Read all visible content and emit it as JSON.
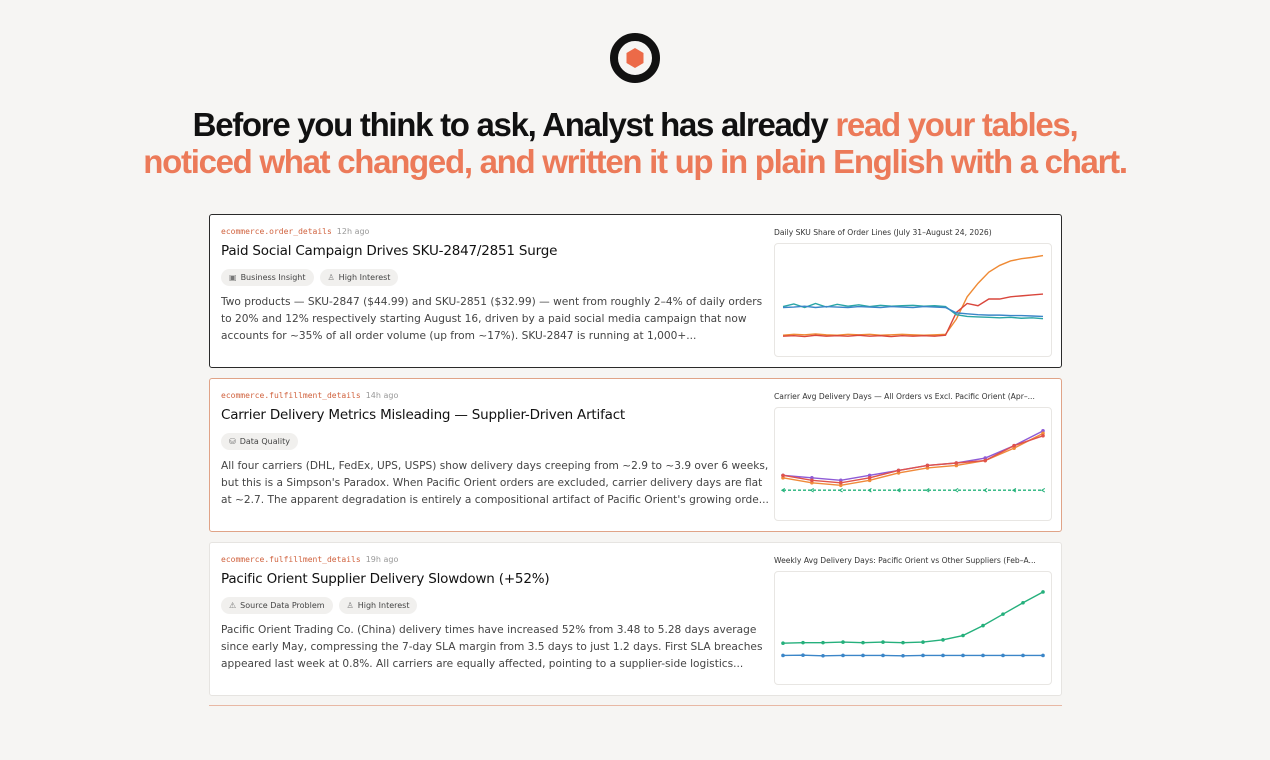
{
  "headline": {
    "lead": "Before you think to ask, Analyst has already",
    "highlight": "read your tables, noticed what changed, and written it up in plain English with a chart."
  },
  "cards": [
    {
      "source": "ecommerce.order_details",
      "age": "12h ago",
      "title": "Paid Social Campaign Drives SKU-2847/2851 Surge",
      "tags": [
        "Business Insight",
        "High Interest"
      ],
      "body": "Two products — SKU-2847 ($44.99) and SKU-2851 ($32.99) — went from roughly 2–4% of daily orders to 20% and 12% respectively starting August 16, driven by a paid social media campaign that now accounts for ~35% of all order volume (up from ~17%). SKU-2847 is running at 1,000+...",
      "chart": {
        "type": "line",
        "title": "Daily SKU Share of Order Lines (July 31–August 24, 2026)",
        "ylim": [
          0,
          21
        ],
        "markers": false,
        "series": [
          {
            "color": "#ef8a34",
            "values": [
              2.4,
              2.6,
              2.5,
              2.7,
              2.5,
              2.4,
              2.6,
              2.5,
              2.6,
              2.4,
              2.5,
              2.6,
              2.5,
              2.4,
              2.5,
              2.6,
              6,
              11,
              14,
              16.5,
              18,
              19,
              19.5,
              19.8,
              20.2
            ]
          },
          {
            "color": "#d9463c",
            "values": [
              2.2,
              2.3,
              2.1,
              2.4,
              2.2,
              2.3,
              2.2,
              2.4,
              2.2,
              2.3,
              2.1,
              2.3,
              2.2,
              2.3,
              2.2,
              2.4,
              7.5,
              9.5,
              9,
              10.5,
              10.5,
              11,
              11.2,
              11.4,
              11.6
            ]
          },
          {
            "color": "#2aa6a6",
            "values": [
              8.8,
              9.4,
              8.6,
              9.5,
              8.7,
              9.3,
              8.9,
              9.2,
              8.8,
              9.1,
              8.9,
              9,
              9.1,
              8.9,
              9,
              8.8,
              7,
              6.6,
              6.5,
              6.4,
              6.3,
              6.4,
              6.2,
              6.3,
              6.1
            ]
          },
          {
            "color": "#3b86c8",
            "values": [
              8.6,
              8.7,
              8.9,
              8.6,
              8.8,
              8.7,
              8.6,
              8.8,
              8.7,
              8.6,
              8.8,
              8.7,
              8.6,
              8.8,
              8.7,
              8.6,
              7.4,
              7.2,
              7,
              6.9,
              6.9,
              6.8,
              6.8,
              6.7,
              6.6
            ]
          }
        ]
      }
    },
    {
      "source": "ecommerce.fulfillment_details",
      "age": "14h ago",
      "title": "Carrier Delivery Metrics Misleading — Supplier-Driven Artifact",
      "tags": [
        "Data Quality"
      ],
      "body": "All four carriers (DHL, FedEx, UPS, USPS) show delivery days creeping from ~2.9 to ~3.9 over 6 weeks, but this is a Simpson's Paradox. When Pacific Orient orders are excluded, carrier delivery days are flat at ~2.7. The apparent degradation is entirely a compositional artifact of Pacific Orient's growing orde...",
      "chart": {
        "type": "line",
        "title": "Carrier Avg Delivery Days — All Orders vs Excl. Pacific Orient (Apr–...",
        "ylim": [
          2.3,
          4.2
        ],
        "markers": true,
        "series": [
          {
            "color": "#8e5bd6",
            "values": [
              3.0,
              2.95,
              2.9,
              3.0,
              3.1,
              3.2,
              3.25,
              3.35,
              3.6,
              3.9
            ]
          },
          {
            "color": "#f08a3a",
            "values": [
              2.95,
              2.85,
              2.8,
              2.9,
              3.05,
              3.15,
              3.2,
              3.3,
              3.55,
              3.85
            ]
          },
          {
            "color": "#e0534b",
            "values": [
              3.0,
              2.9,
              2.85,
              2.95,
              3.1,
              3.2,
              3.25,
              3.3,
              3.6,
              3.8
            ]
          },
          {
            "color": "#23b27a",
            "dashed": true,
            "values": [
              2.7,
              2.7,
              2.7,
              2.7,
              2.7,
              2.7,
              2.7,
              2.7,
              2.7,
              2.7
            ]
          }
        ]
      }
    },
    {
      "source": "ecommerce.fulfillment_details",
      "age": "19h ago",
      "title": "Pacific Orient Supplier Delivery Slowdown (+52%)",
      "tags": [
        "Source Data Problem",
        "High Interest"
      ],
      "body": "Pacific Orient Trading Co. (China) delivery times have increased 52% from 3.48 to 5.28 days average since early May, compressing the 7-day SLA margin from 3.5 days to just 1.2 days. First SLA breaches appeared last week at 0.8%. All carriers are equally affected, pointing to a supplier-side logistics...",
      "chart": {
        "type": "line",
        "title": "Weekly Avg Delivery Days: Pacific Orient vs Other Suppliers (Feb–A...",
        "ylim": [
          2.4,
          5.7
        ],
        "markers": true,
        "series": [
          {
            "color": "#25b07c",
            "values": [
              3.48,
              3.5,
              3.5,
              3.52,
              3.5,
              3.52,
              3.5,
              3.52,
              3.6,
              3.75,
              4.1,
              4.5,
              4.9,
              5.28
            ]
          },
          {
            "color": "#3b86c8",
            "values": [
              3.05,
              3.06,
              3.04,
              3.05,
              3.05,
              3.05,
              3.04,
              3.05,
              3.05,
              3.05,
              3.05,
              3.05,
              3.05,
              3.05
            ]
          }
        ]
      }
    }
  ]
}
